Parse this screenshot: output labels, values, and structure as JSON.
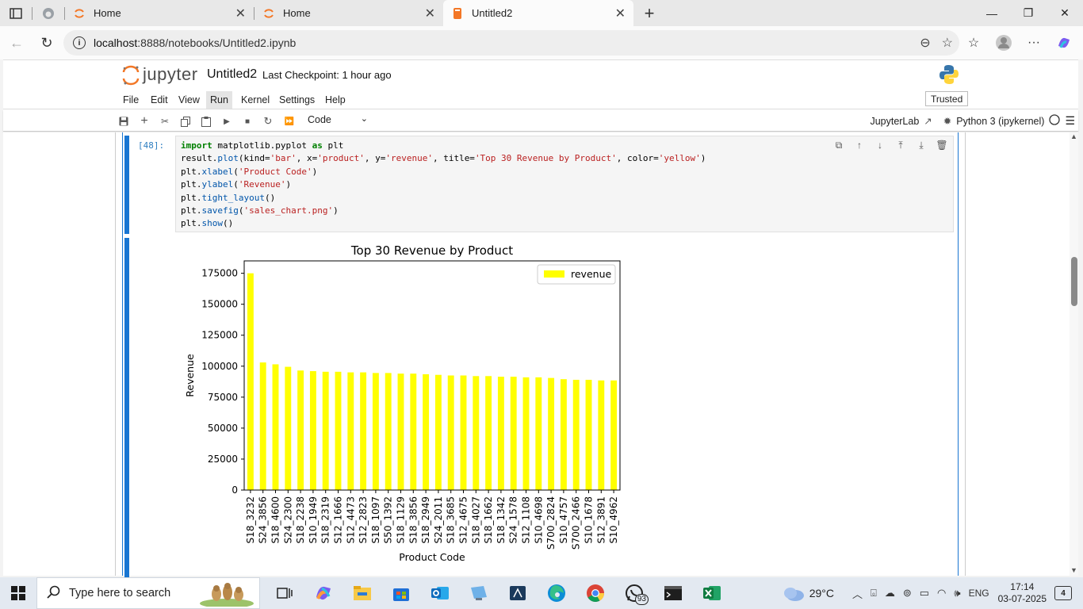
{
  "browser": {
    "tabs": [
      {
        "label": "Home",
        "icon": "jupyter-orange-icon"
      },
      {
        "label": "Home",
        "icon": "jupyter-orange-icon"
      },
      {
        "label": "Untitled2",
        "icon": "notebook-orange-icon"
      }
    ],
    "url_host": "localhost",
    "url_rest": ":8888/notebooks/Untitled2.ipynb"
  },
  "jupyter": {
    "logo_text": "jupyter",
    "notebook_name": "Untitled2",
    "checkpoint": "Last Checkpoint: 1 hour ago",
    "menus": [
      "File",
      "Edit",
      "View",
      "Run",
      "Kernel",
      "Settings",
      "Help"
    ],
    "active_menu": "Run",
    "trusted": "Trusted",
    "cell_type": "Code",
    "jupyterlab_link": "JupyterLab",
    "kernel": "Python 3 (ipykernel)"
  },
  "cell": {
    "prompt": "[48]:",
    "code_lines": [
      [
        {
          "t": "import",
          "c": "kw"
        },
        {
          "t": " matplotlib.pyplot "
        },
        {
          "t": "as",
          "c": "kw"
        },
        {
          "t": " plt"
        }
      ],
      [
        {
          "t": "result."
        },
        {
          "t": "plot",
          "c": "fn"
        },
        {
          "t": "(kind="
        },
        {
          "t": "'bar'",
          "c": "st"
        },
        {
          "t": ", x="
        },
        {
          "t": "'product'",
          "c": "st"
        },
        {
          "t": ", y="
        },
        {
          "t": "'revenue'",
          "c": "st"
        },
        {
          "t": ", title="
        },
        {
          "t": "'Top 30 Revenue by Product'",
          "c": "st"
        },
        {
          "t": ", color="
        },
        {
          "t": "'yellow'",
          "c": "st"
        },
        {
          "t": ")"
        }
      ],
      [
        {
          "t": "plt."
        },
        {
          "t": "xlabel",
          "c": "fn"
        },
        {
          "t": "("
        },
        {
          "t": "'Product Code'",
          "c": "st"
        },
        {
          "t": ")"
        }
      ],
      [
        {
          "t": "plt."
        },
        {
          "t": "ylabel",
          "c": "fn"
        },
        {
          "t": "("
        },
        {
          "t": "'Revenue'",
          "c": "st"
        },
        {
          "t": ")"
        }
      ],
      [
        {
          "t": "plt."
        },
        {
          "t": "tight_layout",
          "c": "fn"
        },
        {
          "t": "()"
        }
      ],
      [
        {
          "t": "plt."
        },
        {
          "t": "savefig",
          "c": "fn"
        },
        {
          "t": "("
        },
        {
          "t": "'sales_chart.png'",
          "c": "st"
        },
        {
          "t": ")"
        }
      ],
      [
        {
          "t": "plt."
        },
        {
          "t": "show",
          "c": "fn"
        },
        {
          "t": "()"
        }
      ]
    ]
  },
  "chart_data": {
    "type": "bar",
    "title": "Top 30 Revenue by Product",
    "xlabel": "Product Code",
    "ylabel": "Revenue",
    "ylim": [
      0,
      185000
    ],
    "yticks": [
      0,
      25000,
      50000,
      75000,
      100000,
      125000,
      150000,
      175000
    ],
    "legend": "top-right",
    "bar_color": "#ffff00",
    "categories": [
      "S18_3232",
      "S24_3856",
      "S18_4600",
      "S24_2300",
      "S18_2238",
      "S10_1949",
      "S18_2319",
      "S12_1666",
      "S12_4473",
      "S12_2823",
      "S18_1097",
      "S50_1392",
      "S18_1129",
      "S18_3856",
      "S18_2949",
      "S24_2011",
      "S18_3685",
      "S12_4675",
      "S18_4027",
      "S18_1662",
      "S18_1342",
      "S24_1578",
      "S12_1108",
      "S10_4698",
      "S700_2824",
      "S10_4757",
      "S700_2466",
      "S10_1678",
      "S12_3891",
      "S10_4962"
    ],
    "series": [
      {
        "name": "revenue",
        "values": [
          175000,
          103000,
          101500,
          99500,
          96500,
          96000,
          95500,
          95500,
          95000,
          95000,
          94500,
          94500,
          94000,
          94000,
          93500,
          93000,
          92500,
          92500,
          92000,
          92000,
          91500,
          91500,
          91000,
          91000,
          90500,
          89500,
          89000,
          89000,
          88500,
          88500
        ]
      }
    ]
  },
  "taskbar": {
    "search_placeholder": "Type here to search",
    "whatsapp_badge": "93",
    "weather": "29°C",
    "lang": "ENG",
    "time": "17:14",
    "date": "03-07-2025",
    "notif_count": "4"
  }
}
